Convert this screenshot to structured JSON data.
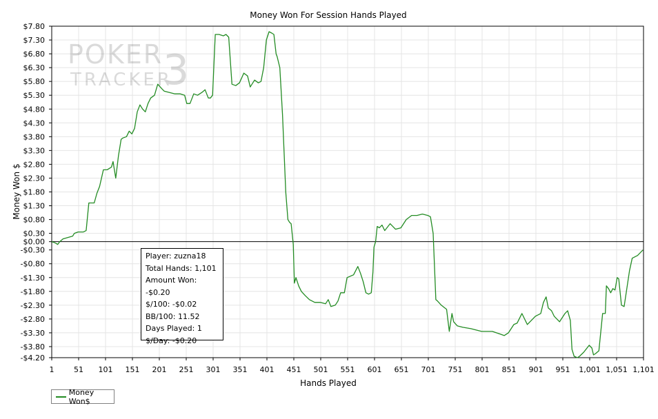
{
  "chart_data": {
    "type": "line",
    "title": "Money Won For Session Hands Played",
    "xlabel": "Hands Played",
    "ylabel": "Money Won $",
    "xlim": [
      1,
      1101
    ],
    "ylim": [
      -4.2,
      7.8
    ],
    "x_ticks": [
      1,
      51,
      101,
      151,
      201,
      251,
      301,
      351,
      401,
      451,
      501,
      551,
      601,
      651,
      701,
      751,
      801,
      851,
      901,
      951,
      1001,
      1051,
      1101
    ],
    "x_tick_labels": [
      "1",
      "51",
      "101",
      "151",
      "201",
      "251",
      "301",
      "351",
      "401",
      "451",
      "501",
      "551",
      "601",
      "651",
      "701",
      "751",
      "801",
      "851",
      "901",
      "951",
      "1,001",
      "1,051",
      "1,101"
    ],
    "y_ticks": [
      7.8,
      7.3,
      6.8,
      6.3,
      5.8,
      5.3,
      4.8,
      4.3,
      3.8,
      3.3,
      2.8,
      2.3,
      1.8,
      1.3,
      0.8,
      0.3,
      0.0,
      -0.3,
      -0.8,
      -1.3,
      -1.8,
      -2.3,
      -2.8,
      -3.3,
      -3.8,
      -4.2
    ],
    "y_tick_labels": [
      "$7.80",
      "$7.30",
      "$6.80",
      "$6.30",
      "$5.80",
      "$5.30",
      "$4.80",
      "$4.30",
      "$3.80",
      "$3.30",
      "$2.80",
      "$2.30",
      "$1.80",
      "$1.30",
      "$0.80",
      "$0.30",
      "$0.00",
      "-$0.30",
      "-$0.80",
      "-$1.30",
      "-$1.80",
      "-$2.30",
      "-$2.80",
      "-$3.30",
      "-$3.80",
      "-$4.20"
    ],
    "grid": true,
    "legend_position": "bottom-left",
    "series": [
      {
        "name": "Money Won$",
        "color": "#228B22",
        "x": [
          1,
          8,
          12,
          16,
          22,
          40,
          43,
          50,
          52,
          60,
          65,
          70,
          72,
          80,
          85,
          90,
          97,
          100,
          104,
          112,
          115,
          120,
          125,
          130,
          133,
          140,
          145,
          150,
          155,
          160,
          165,
          170,
          175,
          180,
          185,
          192,
          198,
          205,
          210,
          220,
          230,
          240,
          248,
          252,
          258,
          265,
          272,
          280,
          286,
          292,
          296,
          300,
          305,
          312,
          320,
          325,
          330,
          336,
          343,
          350,
          358,
          365,
          370,
          378,
          385,
          390,
          395,
          400,
          405,
          410,
          414,
          418,
          420,
          425,
          430,
          436,
          440,
          443,
          446,
          450,
          452,
          455,
          460,
          465,
          472,
          480,
          490,
          500,
          510,
          515,
          520,
          528,
          533,
          538,
          545,
          550,
          556,
          562,
          570,
          575,
          580,
          585,
          590,
          595,
          598,
          600,
          603,
          606,
          610,
          615,
          620,
          630,
          640,
          650,
          660,
          670,
          680,
          690,
          700,
          705,
          710,
          715,
          718,
          725,
          735,
          740,
          745,
          748,
          755,
          765,
          780,
          800,
          820,
          835,
          842,
          850,
          855,
          860,
          866,
          875,
          885,
          895,
          900,
          910,
          915,
          920,
          924,
          930,
          935,
          945,
          955,
          960,
          965,
          968,
          972,
          978,
          982,
          990,
          1000,
          1005,
          1008,
          1012,
          1018,
          1025,
          1030,
          1032,
          1036,
          1040,
          1044,
          1048,
          1052,
          1055,
          1060,
          1065,
          1070,
          1075,
          1080,
          1090,
          1100
        ],
        "y": [
          0.0,
          -0.05,
          -0.1,
          0.0,
          0.1,
          0.2,
          0.3,
          0.35,
          0.35,
          0.35,
          0.4,
          1.4,
          1.4,
          1.4,
          1.75,
          2.0,
          2.6,
          2.6,
          2.6,
          2.7,
          2.9,
          2.3,
          3.1,
          3.7,
          3.75,
          3.8,
          4.0,
          3.9,
          4.1,
          4.7,
          4.95,
          4.8,
          4.7,
          5.0,
          5.2,
          5.3,
          5.7,
          5.55,
          5.45,
          5.4,
          5.35,
          5.35,
          5.3,
          5.0,
          5.0,
          5.35,
          5.3,
          5.4,
          5.5,
          5.2,
          5.2,
          5.3,
          7.5,
          7.5,
          7.45,
          7.5,
          7.4,
          5.7,
          5.65,
          5.75,
          6.1,
          6.0,
          5.6,
          5.85,
          5.75,
          5.8,
          6.3,
          7.3,
          7.6,
          7.55,
          7.5,
          6.8,
          6.7,
          6.3,
          4.6,
          1.8,
          0.8,
          0.7,
          0.65,
          -0.1,
          -1.5,
          -1.3,
          -1.6,
          -1.8,
          -1.95,
          -2.1,
          -2.2,
          -2.2,
          -2.25,
          -2.1,
          -2.35,
          -2.3,
          -2.15,
          -1.85,
          -1.85,
          -1.3,
          -1.25,
          -1.2,
          -0.9,
          -1.15,
          -1.45,
          -1.85,
          -1.9,
          -1.85,
          -1.1,
          -0.2,
          0.0,
          0.55,
          0.5,
          0.6,
          0.4,
          0.65,
          0.45,
          0.5,
          0.8,
          0.95,
          0.95,
          1.0,
          0.95,
          0.9,
          0.3,
          -2.1,
          -2.15,
          -2.3,
          -2.45,
          -3.25,
          -2.6,
          -2.9,
          -3.05,
          -3.1,
          -3.15,
          -3.25,
          -3.25,
          -3.35,
          -3.4,
          -3.3,
          -3.15,
          -3.0,
          -2.95,
          -2.6,
          -3.0,
          -2.8,
          -2.7,
          -2.6,
          -2.2,
          -2.0,
          -2.4,
          -2.5,
          -2.7,
          -2.9,
          -2.6,
          -2.5,
          -2.85,
          -3.9,
          -4.15,
          -4.2,
          -4.15,
          -4.0,
          -3.75,
          -3.85,
          -4.1,
          -4.05,
          -3.95,
          -2.6,
          -2.6,
          -1.6,
          -1.7,
          -1.85,
          -1.7,
          -1.75,
          -1.3,
          -1.35,
          -2.3,
          -2.35,
          -1.7,
          -1.05,
          -0.6,
          -0.5,
          -0.3
        ]
      }
    ]
  },
  "stats": {
    "player": "Player: zuzna18",
    "total_hands": "Total Hands: 1,101",
    "amount_won": "Amount Won: -$0.20",
    "per_100": "$/100: -$0.02",
    "bb_100": "BB/100: 11.52",
    "days_played": "Days Played: 1",
    "per_day": "$/Day: -$0.20"
  },
  "watermark": {
    "line1": "POKER",
    "line2": "TRACKER",
    "line3": "3"
  }
}
